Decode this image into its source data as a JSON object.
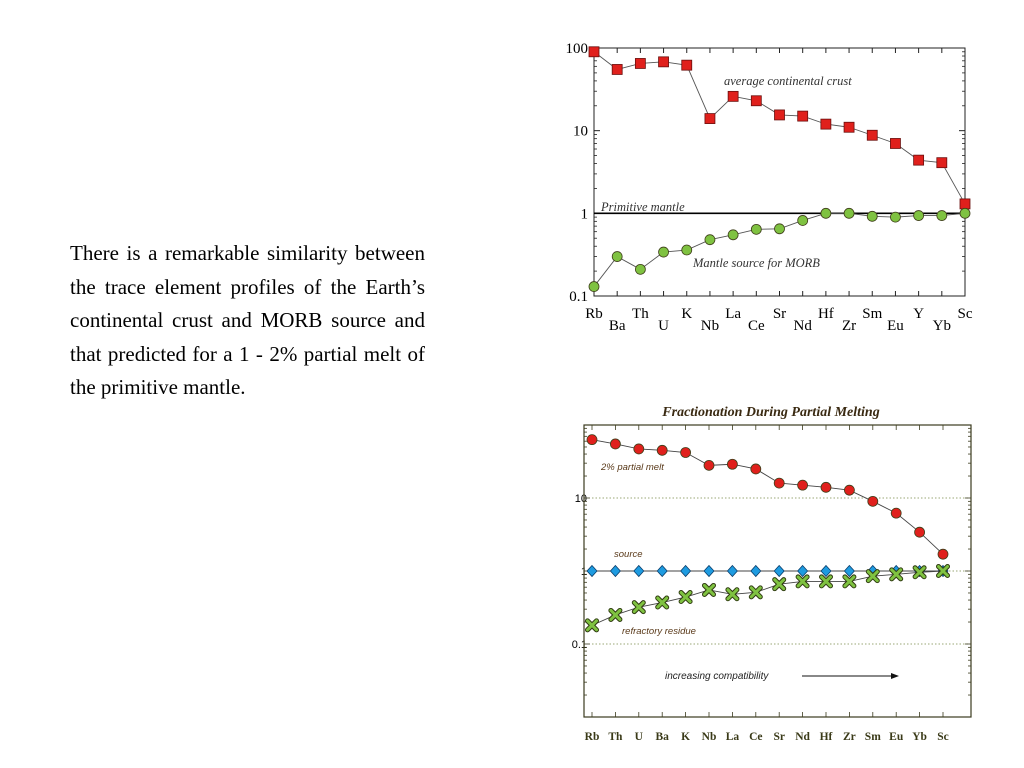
{
  "slide": {
    "body_text": "There is a remarkable similarity between the trace element profiles of the Earth’s continental crust and MORB source and that predicted for a 1 - 2% partial melt of the primitive mantle."
  },
  "chart_data": [
    {
      "type": "line",
      "title": "",
      "y_scale": "log",
      "ylim": [
        0.1,
        100
      ],
      "y_ticks": [
        "100",
        "10",
        "1",
        "0.1"
      ],
      "grid": false,
      "categories": [
        "Rb",
        "Ba",
        "Th",
        "U",
        "K",
        "Nb",
        "La",
        "Ce",
        "Sr",
        "Nd",
        "Hf",
        "Zr",
        "Sm",
        "Eu",
        "Y",
        "Yb",
        "Sc"
      ],
      "series": [
        {
          "name": "average continental crust",
          "marker": "square",
          "color": "#e0201c",
          "values": [
            90,
            55,
            65,
            68,
            62,
            14,
            26,
            23,
            15.5,
            15,
            12,
            11,
            8.8,
            7,
            4.4,
            4.1,
            1.3
          ]
        },
        {
          "name": "Mantle source for MORB",
          "marker": "circle",
          "color": "#7fc241",
          "values": [
            0.13,
            0.3,
            0.21,
            0.34,
            0.36,
            0.48,
            0.55,
            0.64,
            0.65,
            0.82,
            1.0,
            1.0,
            0.92,
            0.9,
            0.94,
            0.94,
            1.0
          ]
        }
      ],
      "annotations": [
        "Primitive mantle"
      ]
    },
    {
      "type": "line",
      "title": "Fractionation During Partial Melting",
      "y_scale": "log",
      "ylim": [
        0.01,
        100
      ],
      "y_ticks": [
        "10",
        "1",
        "0.1"
      ],
      "grid": true,
      "categories": [
        "Rb",
        "Th",
        "U",
        "Ba",
        "K",
        "Nb",
        "La",
        "Ce",
        "Sr",
        "Nd",
        "Hf",
        "Zr",
        "Sm",
        "Eu",
        "Yb",
        "Sc"
      ],
      "series": [
        {
          "name": "2% partial melt",
          "marker": "circle",
          "color": "#e0201c",
          "values": [
            63,
            55,
            47,
            45,
            42,
            28,
            29,
            25,
            16,
            15,
            14,
            12.8,
            9,
            6.2,
            3.4,
            1.7
          ]
        },
        {
          "name": "source",
          "marker": "diamond",
          "color": "#1e9be0",
          "values": [
            1,
            1,
            1,
            1,
            1,
            1,
            1,
            1,
            1,
            1,
            1,
            1,
            1,
            1,
            1,
            1
          ]
        },
        {
          "name": "refractory residue",
          "marker": "x",
          "color": "#7fc241",
          "values": [
            0.18,
            0.25,
            0.32,
            0.37,
            0.44,
            0.55,
            0.48,
            0.51,
            0.66,
            0.72,
            0.72,
            0.72,
            0.85,
            0.9,
            0.96,
            1.0
          ]
        }
      ],
      "annotations": [
        "increasing compatibility"
      ]
    }
  ]
}
